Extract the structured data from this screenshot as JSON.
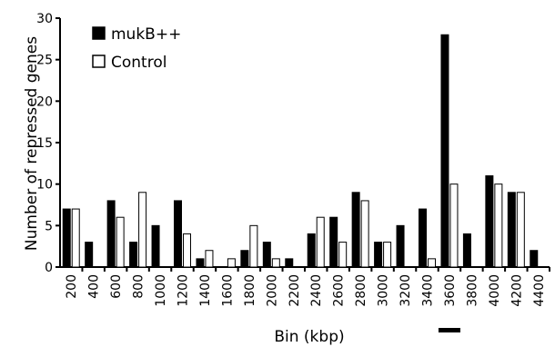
{
  "chart_data": {
    "type": "bar",
    "xlabel": "Bin (kbp)",
    "ylabel": "Number of repressed genes",
    "ylim": [
      0,
      30
    ],
    "yticks": [
      0,
      5,
      10,
      15,
      20,
      25,
      30
    ],
    "categories": [
      "200",
      "400",
      "600",
      "800",
      "1000",
      "1200",
      "1400",
      "1600",
      "1800",
      "2000",
      "2200",
      "2400",
      "2600",
      "2800",
      "3000",
      "3200",
      "3400",
      "3600",
      "3800",
      "4000",
      "4200",
      "4400"
    ],
    "series": [
      {
        "name": "mukB++",
        "color": "#000000",
        "values": [
          7,
          3,
          8,
          3,
          5,
          8,
          1,
          0,
          2,
          3,
          1,
          4,
          6,
          9,
          3,
          5,
          7,
          28,
          4,
          11,
          9,
          2
        ]
      },
      {
        "name": "Control",
        "color": "#ffffff",
        "values": [
          7,
          0,
          6,
          9,
          0,
          4,
          2,
          1,
          5,
          1,
          0,
          6,
          3,
          8,
          3,
          0,
          1,
          10,
          0,
          10,
          9,
          0
        ]
      }
    ],
    "legend_position": "top-left",
    "grid": false,
    "highlight_category": "3600"
  }
}
